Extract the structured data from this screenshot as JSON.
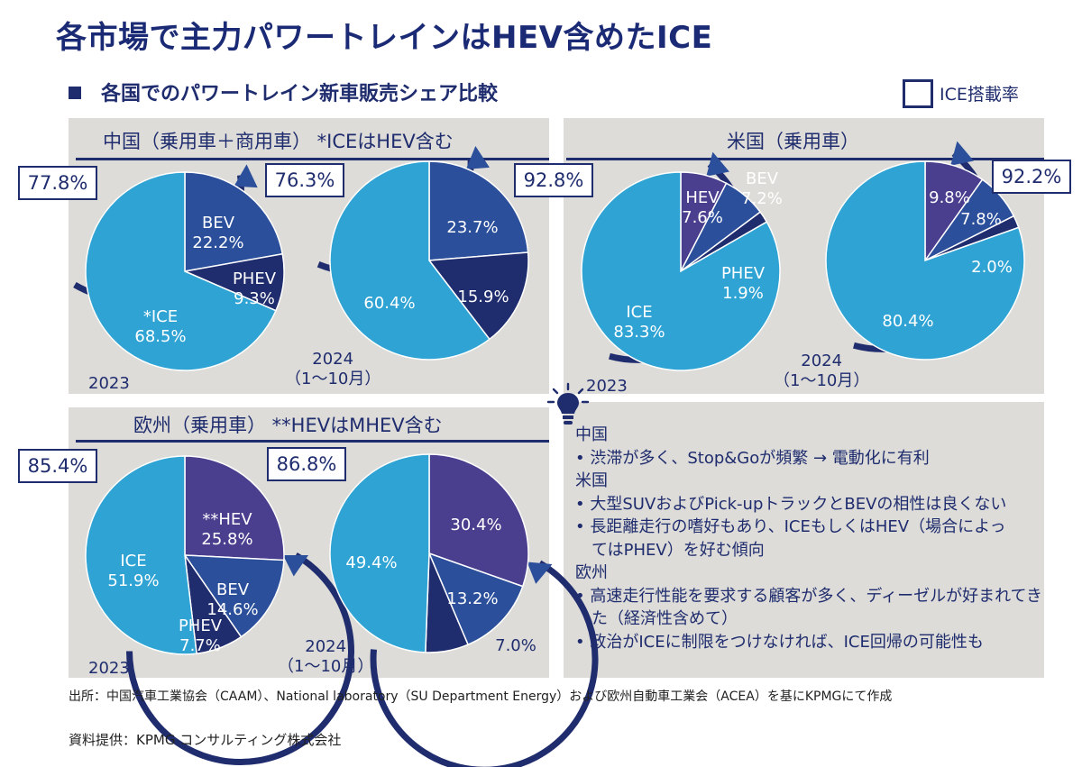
{
  "title": "各市場で主力パワートレインはHEV含めたICE",
  "subtitle": "各国でのパワートレイン新車販売シェア比較",
  "legend": {
    "label": "ICE搭載率"
  },
  "colors": {
    "ice": "#2ea3d4",
    "bev": "#2b4f9b",
    "phev": "#1f2c6e",
    "hev": "#4a3e8e",
    "panel": "#dddcd8",
    "navy": "#1f2c6e"
  },
  "panels": {
    "china": {
      "title": "中国（乗用車＋商用車） *ICEはHEV含む"
    },
    "us": {
      "title": "米国（乗用車）"
    },
    "europe": {
      "title": "欧州（乗用車） **HEVはMHEV含む"
    }
  },
  "chart_data": [
    {
      "type": "pie",
      "region": "中国",
      "period": "2023",
      "ice_rate": "77.8%",
      "slices": [
        {
          "label": "BEV",
          "value": 22.2
        },
        {
          "label": "PHEV",
          "value": 9.3
        },
        {
          "label": "*ICE",
          "value": 68.5
        }
      ]
    },
    {
      "type": "pie",
      "region": "中国",
      "period": "2024（1～10月）",
      "ice_rate": "76.3%",
      "slices": [
        {
          "label": "",
          "value": 23.7
        },
        {
          "label": "",
          "value": 15.9
        },
        {
          "label": "",
          "value": 60.4
        }
      ]
    },
    {
      "type": "pie",
      "region": "米国",
      "period": "2023",
      "ice_rate": "92.8%",
      "slices": [
        {
          "label": "HEV",
          "value": 7.6
        },
        {
          "label": "BEV",
          "value": 7.2
        },
        {
          "label": "PHEV",
          "value": 1.9
        },
        {
          "label": "ICE",
          "value": 83.3
        }
      ]
    },
    {
      "type": "pie",
      "region": "米国",
      "period": "2024（1～10月）",
      "ice_rate": "92.2%",
      "slices": [
        {
          "label": "",
          "value": 9.8
        },
        {
          "label": "",
          "value": 7.8
        },
        {
          "label": "",
          "value": 2.0
        },
        {
          "label": "",
          "value": 80.4
        }
      ]
    },
    {
      "type": "pie",
      "region": "欧州",
      "period": "2023",
      "ice_rate": "85.4%",
      "slices": [
        {
          "label": "**HEV",
          "value": 25.8
        },
        {
          "label": "BEV",
          "value": 14.6
        },
        {
          "label": "PHEV",
          "value": 7.7
        },
        {
          "label": "ICE",
          "value": 51.9
        }
      ]
    },
    {
      "type": "pie",
      "region": "欧州",
      "period": "2024（1～10月）",
      "ice_rate": "86.8%",
      "slices": [
        {
          "label": "",
          "value": 30.4
        },
        {
          "label": "",
          "value": 13.2
        },
        {
          "label": "",
          "value": 7.0
        },
        {
          "label": "",
          "value": 49.4
        }
      ]
    }
  ],
  "notes": {
    "china_head": "中国",
    "china_1": "渋滞が多く、Stop&Goが頻繁 → 電動化に有利",
    "us_head": "米国",
    "us_1": "大型SUVおよびPick-upトラックとBEVの相性は良くない",
    "us_2": "長距離走行の嗜好もあり、ICEもしくはHEV（場合によってはPHEV）を好む傾向",
    "eu_head": "欧州",
    "eu_1": "高速走行性能を要求する顧客が多く、ディーゼルが好まれてきた（経済性含めて）",
    "eu_2": "政治がICEに制限をつけなければ、ICE回帰の可能性も"
  },
  "source": "出所：中国汽車工業協会（CAAM）、National laboratory（SU Department Energy）および欧州自動車工業会（ACEA）を基にKPMGにて作成",
  "credit": "資料提供：KPMG コンサルティング株式会社"
}
